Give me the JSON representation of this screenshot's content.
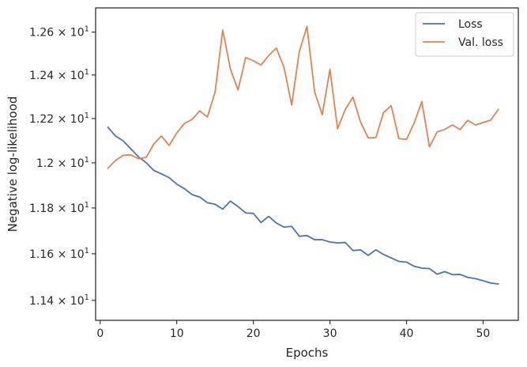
{
  "chart_data": {
    "type": "line",
    "xlabel": "Epochs",
    "ylabel": "Negative log-likelihood",
    "xlim": [
      -0.6,
      54.6
    ],
    "ylim": [
      11.3155,
      12.7141
    ],
    "y_scale": "log",
    "grid": false,
    "legend_position": "top-right",
    "x_ticks": [
      0,
      10,
      20,
      30,
      40,
      50
    ],
    "y_ticks": [
      {
        "value": 11.4,
        "label": "1.14 × 10¹"
      },
      {
        "value": 11.6,
        "label": "1.16 × 10¹"
      },
      {
        "value": 11.8,
        "label": "1.18 × 10¹"
      },
      {
        "value": 12.0,
        "label": "1.2 × 10¹"
      },
      {
        "value": 12.2,
        "label": "1.22 × 10¹"
      },
      {
        "value": 12.4,
        "label": "1.24 × 10¹"
      },
      {
        "value": 12.6,
        "label": "1.26 × 10¹"
      }
    ],
    "x": [
      1,
      2,
      3,
      4,
      5,
      6,
      7,
      8,
      9,
      10,
      11,
      12,
      13,
      14,
      15,
      16,
      17,
      18,
      19,
      20,
      21,
      22,
      23,
      24,
      25,
      26,
      27,
      28,
      29,
      30,
      31,
      32,
      33,
      34,
      35,
      36,
      37,
      38,
      39,
      40,
      41,
      42,
      43,
      44,
      45,
      46,
      47,
      48,
      49,
      50,
      51,
      52
    ],
    "series": [
      {
        "name": "Loss",
        "color": "#4c72b0",
        "values": [
          12.161,
          12.121,
          12.099,
          12.063,
          12.027,
          12.001,
          11.966,
          11.951,
          11.934,
          11.905,
          11.885,
          11.859,
          11.848,
          11.823,
          11.816,
          11.795,
          11.83,
          11.806,
          11.778,
          11.776,
          11.736,
          11.763,
          11.734,
          11.716,
          11.719,
          11.676,
          11.679,
          11.661,
          11.661,
          11.651,
          11.647,
          11.649,
          11.614,
          11.617,
          11.593,
          11.617,
          11.597,
          11.582,
          11.567,
          11.564,
          11.546,
          11.538,
          11.536,
          11.512,
          11.523,
          11.51,
          11.511,
          11.498,
          11.493,
          11.484,
          11.474,
          11.47
        ]
      },
      {
        "name": "Val. loss",
        "color": "#dd8452",
        "values": [
          11.976,
          12.011,
          12.034,
          12.036,
          12.019,
          12.024,
          12.085,
          12.121,
          12.078,
          12.135,
          12.178,
          12.196,
          12.235,
          12.207,
          12.321,
          12.61,
          12.428,
          12.331,
          12.481,
          12.466,
          12.446,
          12.49,
          12.525,
          12.436,
          12.262,
          12.508,
          12.627,
          12.322,
          12.218,
          12.426,
          12.154,
          12.241,
          12.298,
          12.184,
          12.112,
          12.114,
          12.227,
          12.259,
          12.109,
          12.106,
          12.18,
          12.278,
          12.072,
          12.139,
          12.151,
          12.171,
          12.15,
          12.192,
          12.171,
          12.182,
          12.193,
          12.242
        ]
      }
    ]
  }
}
